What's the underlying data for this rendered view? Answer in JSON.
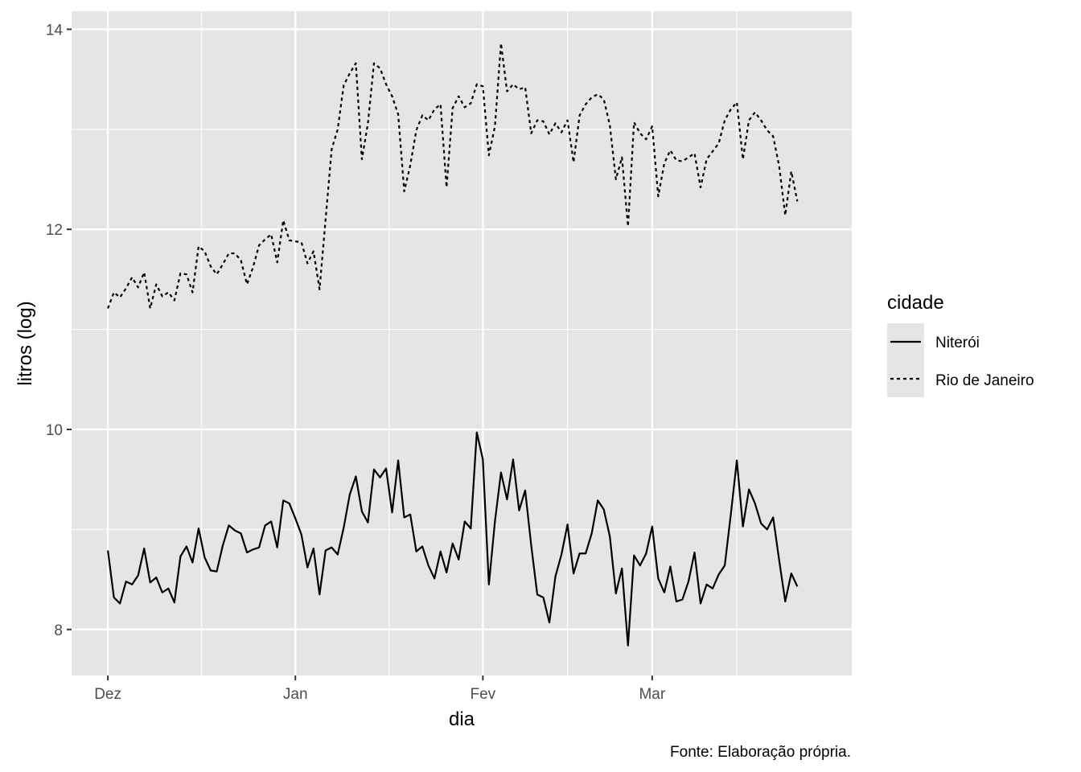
{
  "chart_data": {
    "type": "line",
    "title": "",
    "xlabel": "dia",
    "ylabel": "litros (log)",
    "caption": "Fonte: Elaboração própria.",
    "legend": {
      "title": "cidade",
      "position": "right"
    },
    "x_ticks": [
      "Dez",
      "Jan",
      "Fev",
      "Mar"
    ],
    "y_ticks": [
      "8",
      "10",
      "12",
      "14"
    ],
    "x_tick_dates": [
      "2020-12-01",
      "2021-01-01",
      "2021-02-01",
      "2021-03-01"
    ],
    "x_range": [
      "2020-11-25",
      "2021-04-03"
    ],
    "y_range": [
      7.54,
      14.18
    ],
    "grid": true,
    "background": "#e5e5e5",
    "x_start_date": "2020-12-01",
    "x_step_days": 1,
    "series": [
      {
        "name": "Niterói",
        "linetype": "solid",
        "color": "#000000",
        "values": [
          8.79,
          8.32,
          8.26,
          8.48,
          8.45,
          8.54,
          8.81,
          8.47,
          8.52,
          8.37,
          8.41,
          8.27,
          8.73,
          8.83,
          8.67,
          9.01,
          8.72,
          8.59,
          8.58,
          8.84,
          9.04,
          8.99,
          8.96,
          8.77,
          8.8,
          8.82,
          9.04,
          9.08,
          8.82,
          9.29,
          9.26,
          9.11,
          8.95,
          8.62,
          8.81,
          8.35,
          8.79,
          8.82,
          8.75,
          9.02,
          9.35,
          9.53,
          9.18,
          9.07,
          9.6,
          9.52,
          9.61,
          9.17,
          9.69,
          9.12,
          9.15,
          8.78,
          8.83,
          8.64,
          8.51,
          8.78,
          8.57,
          8.86,
          8.7,
          9.08,
          9.01,
          9.97,
          9.7,
          8.45,
          9.08,
          9.57,
          9.3,
          9.7,
          9.19,
          9.39,
          8.84,
          8.35,
          8.32,
          8.07,
          8.53,
          8.75,
          9.05,
          8.56,
          8.76,
          8.76,
          8.96,
          9.29,
          9.2,
          8.93,
          8.36,
          8.61,
          7.84,
          8.74,
          8.64,
          8.76,
          9.03,
          8.51,
          8.37,
          8.63,
          8.28,
          8.3,
          8.48,
          8.77,
          8.26,
          8.45,
          8.41,
          8.55,
          8.64,
          9.15,
          9.69,
          9.03,
          9.4,
          9.26,
          9.06,
          9.0,
          9.12,
          8.69,
          8.28,
          8.56,
          8.43
        ]
      },
      {
        "name": "Rio de Janeiro",
        "linetype": "dashed",
        "color": "#000000",
        "values": [
          11.21,
          11.37,
          11.32,
          11.41,
          11.52,
          11.42,
          11.57,
          11.21,
          11.45,
          11.33,
          11.37,
          11.29,
          11.56,
          11.55,
          11.37,
          11.83,
          11.78,
          11.63,
          11.55,
          11.65,
          11.76,
          11.76,
          11.69,
          11.45,
          11.62,
          11.84,
          11.9,
          11.95,
          11.67,
          12.09,
          11.89,
          11.88,
          11.87,
          11.66,
          11.78,
          11.4,
          12.1,
          12.8,
          13.0,
          13.44,
          13.56,
          13.66,
          12.7,
          13.06,
          13.66,
          13.61,
          13.45,
          13.33,
          13.15,
          12.38,
          12.64,
          12.99,
          13.14,
          13.09,
          13.2,
          13.25,
          12.42,
          13.21,
          13.33,
          13.22,
          13.26,
          13.45,
          13.43,
          12.74,
          13.03,
          13.86,
          13.38,
          13.45,
          13.4,
          13.42,
          12.96,
          13.09,
          13.08,
          12.95,
          13.06,
          12.97,
          13.09,
          12.67,
          13.14,
          13.25,
          13.32,
          13.35,
          13.3,
          13.04,
          12.5,
          12.72,
          12.03,
          13.07,
          12.96,
          12.9,
          13.03,
          12.33,
          12.66,
          12.79,
          12.69,
          12.68,
          12.72,
          12.76,
          12.42,
          12.7,
          12.78,
          12.86,
          13.09,
          13.2,
          13.27,
          12.7,
          13.09,
          13.17,
          13.09,
          12.99,
          12.93,
          12.63,
          12.14,
          12.58,
          12.28
        ]
      }
    ]
  }
}
